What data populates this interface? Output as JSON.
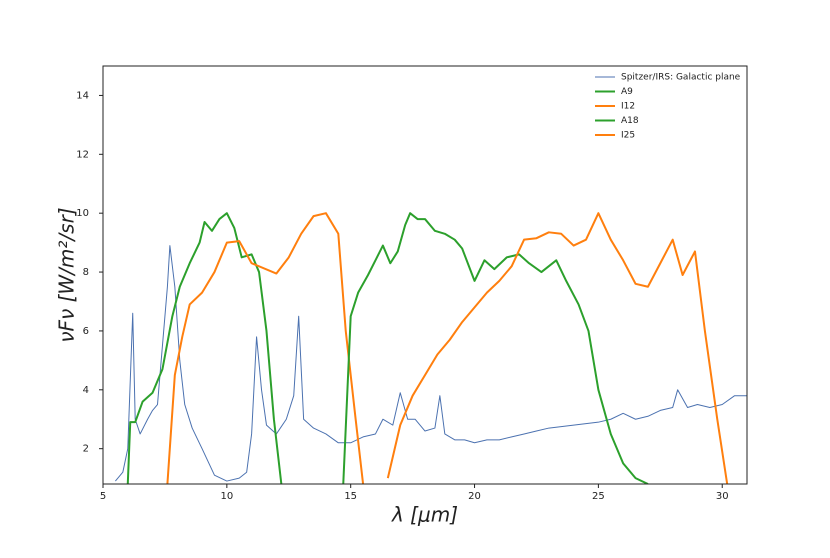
{
  "chart_data": {
    "type": "line",
    "xlabel": "λ [μm]",
    "ylabel": "νFν [W/m²/sr]",
    "xlim": [
      5,
      31
    ],
    "ylim": [
      0.8,
      15
    ],
    "xticks": [
      5,
      10,
      15,
      20,
      25,
      30
    ],
    "yticks": [
      2,
      4,
      6,
      8,
      10,
      12,
      14
    ],
    "legend": "upper right",
    "series": [
      {
        "name": "Spitzer/IRS: Galactic plane",
        "color": "#4c72b0",
        "width": 1,
        "x": [
          5.5,
          5.8,
          6.0,
          6.2,
          6.3,
          6.5,
          6.8,
          7.0,
          7.2,
          7.5,
          7.6,
          7.7,
          7.9,
          8.1,
          8.3,
          8.6,
          9.0,
          9.5,
          10.0,
          10.5,
          10.8,
          11.0,
          11.2,
          11.4,
          11.6,
          12.0,
          12.4,
          12.7,
          12.9,
          13.1,
          13.5,
          14.0,
          14.5,
          15.0,
          15.5,
          16.0,
          16.3,
          16.7,
          17.0,
          17.3,
          17.6,
          18.0,
          18.4,
          18.6,
          18.8,
          19.2,
          19.6,
          20.0,
          20.5,
          21.0,
          21.5,
          22.0,
          22.5,
          23.0,
          24.0,
          25.0,
          25.5,
          26.0,
          26.5,
          27.0,
          27.5,
          28.0,
          28.2,
          28.6,
          29.0,
          29.5,
          30.0,
          30.5,
          31.0
        ],
        "values": [
          0.9,
          1.2,
          2.0,
          6.6,
          3.0,
          2.5,
          3.0,
          3.3,
          3.5,
          6.5,
          7.5,
          8.9,
          7.5,
          5.0,
          3.5,
          2.7,
          2.0,
          1.1,
          0.9,
          1.0,
          1.2,
          2.5,
          5.8,
          4.0,
          2.8,
          2.5,
          3.0,
          3.8,
          6.5,
          3.0,
          2.7,
          2.5,
          2.2,
          2.2,
          2.4,
          2.5,
          3.0,
          2.8,
          3.9,
          3.0,
          3.0,
          2.6,
          2.7,
          3.8,
          2.5,
          2.3,
          2.3,
          2.2,
          2.3,
          2.3,
          2.4,
          2.5,
          2.6,
          2.7,
          2.8,
          2.9,
          3.0,
          3.2,
          3.0,
          3.1,
          3.3,
          3.4,
          4.0,
          3.4,
          3.5,
          3.4,
          3.5,
          3.8,
          3.8
        ]
      },
      {
        "name": "A9",
        "color": "#2ca02c",
        "width": 2,
        "x": [
          6.0,
          6.1,
          6.3,
          6.6,
          7.0,
          7.4,
          7.8,
          8.1,
          8.5,
          8.9,
          9.1,
          9.4,
          9.7,
          10.0,
          10.3,
          10.6,
          11.0,
          11.3,
          11.6,
          11.9,
          12.2
        ],
        "values": [
          0.8,
          2.9,
          2.9,
          3.6,
          3.9,
          4.7,
          6.5,
          7.5,
          8.3,
          9.0,
          9.7,
          9.4,
          9.8,
          10.0,
          9.5,
          8.5,
          8.6,
          8.0,
          6.0,
          3.0,
          0.8
        ]
      },
      {
        "name": "I12",
        "color": "#ff7f0e",
        "width": 2,
        "x": [
          7.6,
          7.9,
          8.2,
          8.5,
          9.0,
          9.5,
          10.0,
          10.5,
          11.0,
          12.0,
          12.5,
          13.0,
          13.5,
          14.0,
          14.5,
          14.8,
          15.2,
          15.5
        ],
        "values": [
          0.8,
          4.5,
          5.8,
          6.9,
          7.3,
          8.0,
          9.0,
          9.05,
          8.3,
          7.95,
          8.5,
          9.3,
          9.9,
          10.0,
          9.3,
          6.0,
          3.0,
          0.8
        ]
      },
      {
        "name": "A18",
        "color": "#2ca02c",
        "width": 2,
        "x": [
          14.7,
          15.0,
          15.3,
          15.7,
          16.0,
          16.3,
          16.6,
          16.9,
          17.2,
          17.4,
          17.7,
          18.0,
          18.4,
          18.8,
          19.2,
          19.5,
          20.0,
          20.4,
          20.8,
          21.3,
          21.8,
          22.2,
          22.7,
          23.3,
          23.7,
          24.2,
          24.6,
          25.0,
          25.5,
          26.0,
          26.5,
          27.0
        ],
        "values": [
          0.8,
          6.5,
          7.3,
          7.9,
          8.4,
          8.9,
          8.3,
          8.7,
          9.6,
          10.0,
          9.8,
          9.8,
          9.4,
          9.3,
          9.1,
          8.8,
          7.7,
          8.4,
          8.1,
          8.5,
          8.6,
          8.3,
          8.0,
          8.4,
          7.7,
          6.9,
          6.0,
          4.0,
          2.5,
          1.5,
          1.0,
          0.8
        ]
      },
      {
        "name": "I25",
        "color": "#ff7f0e",
        "width": 2,
        "x": [
          16.5,
          17.0,
          17.5,
          18.0,
          18.5,
          19.0,
          19.5,
          20.0,
          20.5,
          21.0,
          21.5,
          22.0,
          22.5,
          23.0,
          23.5,
          24.0,
          24.5,
          25.0,
          25.5,
          26.0,
          26.5,
          27.0,
          27.5,
          28.0,
          28.4,
          28.9,
          29.3,
          29.8,
          30.2
        ],
        "values": [
          1.0,
          2.8,
          3.8,
          4.5,
          5.2,
          5.7,
          6.3,
          6.8,
          7.3,
          7.7,
          8.2,
          9.1,
          9.15,
          9.35,
          9.3,
          8.9,
          9.1,
          10.0,
          9.1,
          8.4,
          7.6,
          7.5,
          8.3,
          9.1,
          7.9,
          8.7,
          6.0,
          3.0,
          0.8
        ]
      }
    ]
  }
}
